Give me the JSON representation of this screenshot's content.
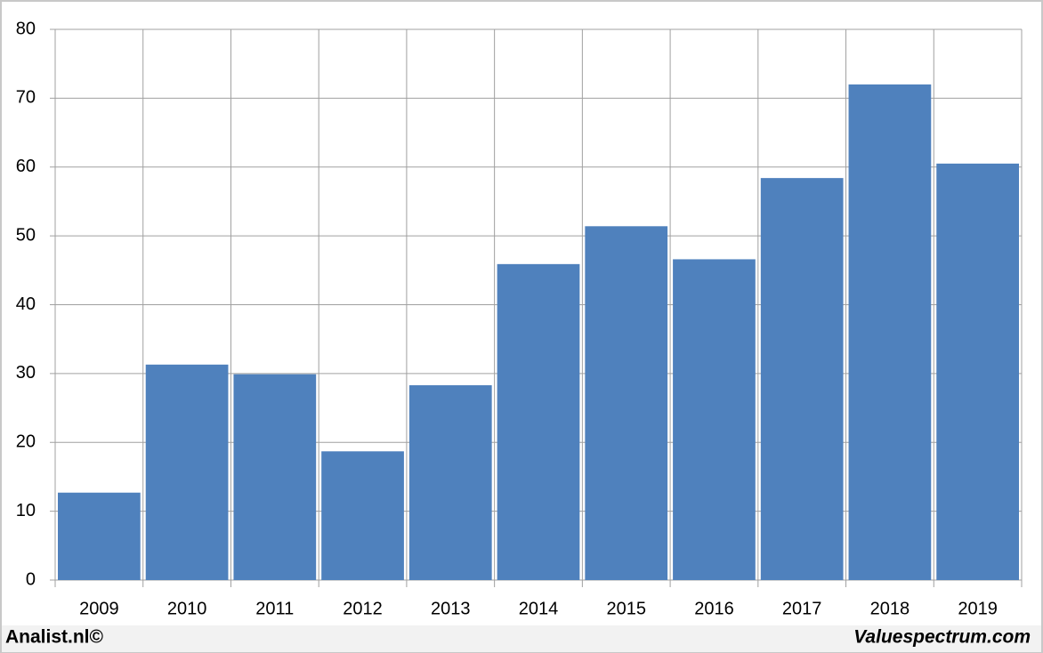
{
  "chart_data": {
    "type": "bar",
    "categories": [
      "2009",
      "2010",
      "2011",
      "2012",
      "2013",
      "2014",
      "2015",
      "2016",
      "2017",
      "2018",
      "2019"
    ],
    "values": [
      12.7,
      31.3,
      29.9,
      18.7,
      28.3,
      45.9,
      51.4,
      46.6,
      58.4,
      72.0,
      60.5
    ],
    "color": "#4f81bd",
    "ylim": [
      0,
      80
    ],
    "yticks": [
      0,
      10,
      20,
      30,
      40,
      50,
      60,
      70,
      80
    ],
    "grid": true
  },
  "footer": {
    "left": "Analist.nl©",
    "right": "Valuespectrum.com"
  }
}
